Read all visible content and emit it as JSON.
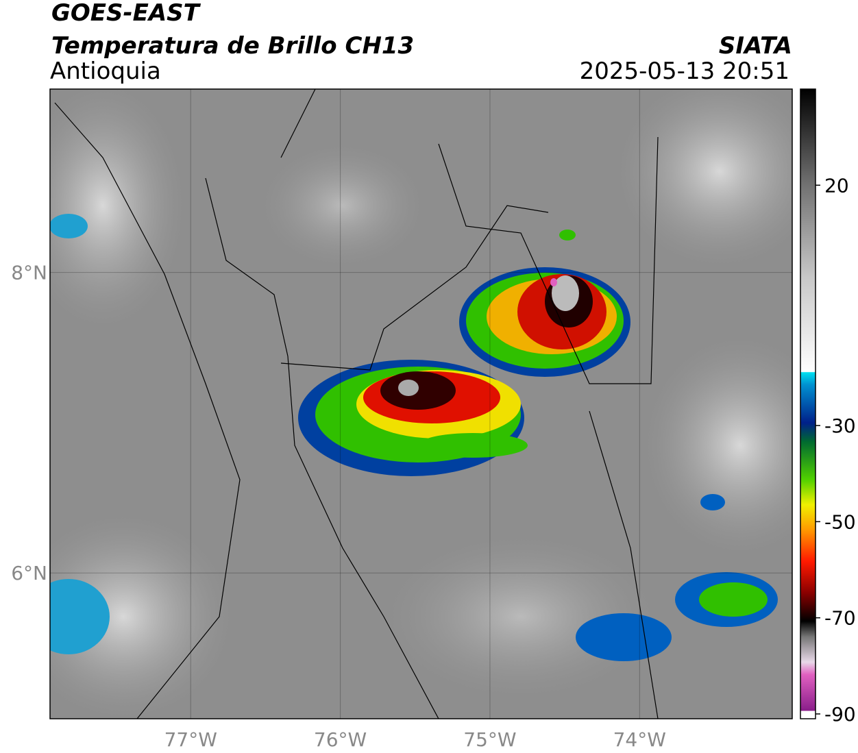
{
  "header": {
    "satellite": "GOES-EAST",
    "product": "Temperatura de Brillo CH13",
    "region": "Antioquia",
    "source": "SIATA",
    "datetime": "2025-05-13 20:51"
  },
  "map": {
    "lon_range": [
      -77.94,
      -72.98
    ],
    "lat_range": [
      5.03,
      9.22
    ],
    "lat_ticks": [
      {
        "value": 8,
        "label": "8°N"
      },
      {
        "value": 6,
        "label": "6°N"
      }
    ],
    "lon_ticks": [
      {
        "value": -77,
        "label": "77°W"
      },
      {
        "value": -76,
        "label": "76°W"
      },
      {
        "value": -75,
        "label": "75°W"
      },
      {
        "value": -74,
        "label": "74°W"
      }
    ]
  },
  "colorbar": {
    "range": [
      -91,
      40
    ],
    "ticks": [
      20,
      -30,
      -50,
      -70,
      -90
    ]
  }
}
